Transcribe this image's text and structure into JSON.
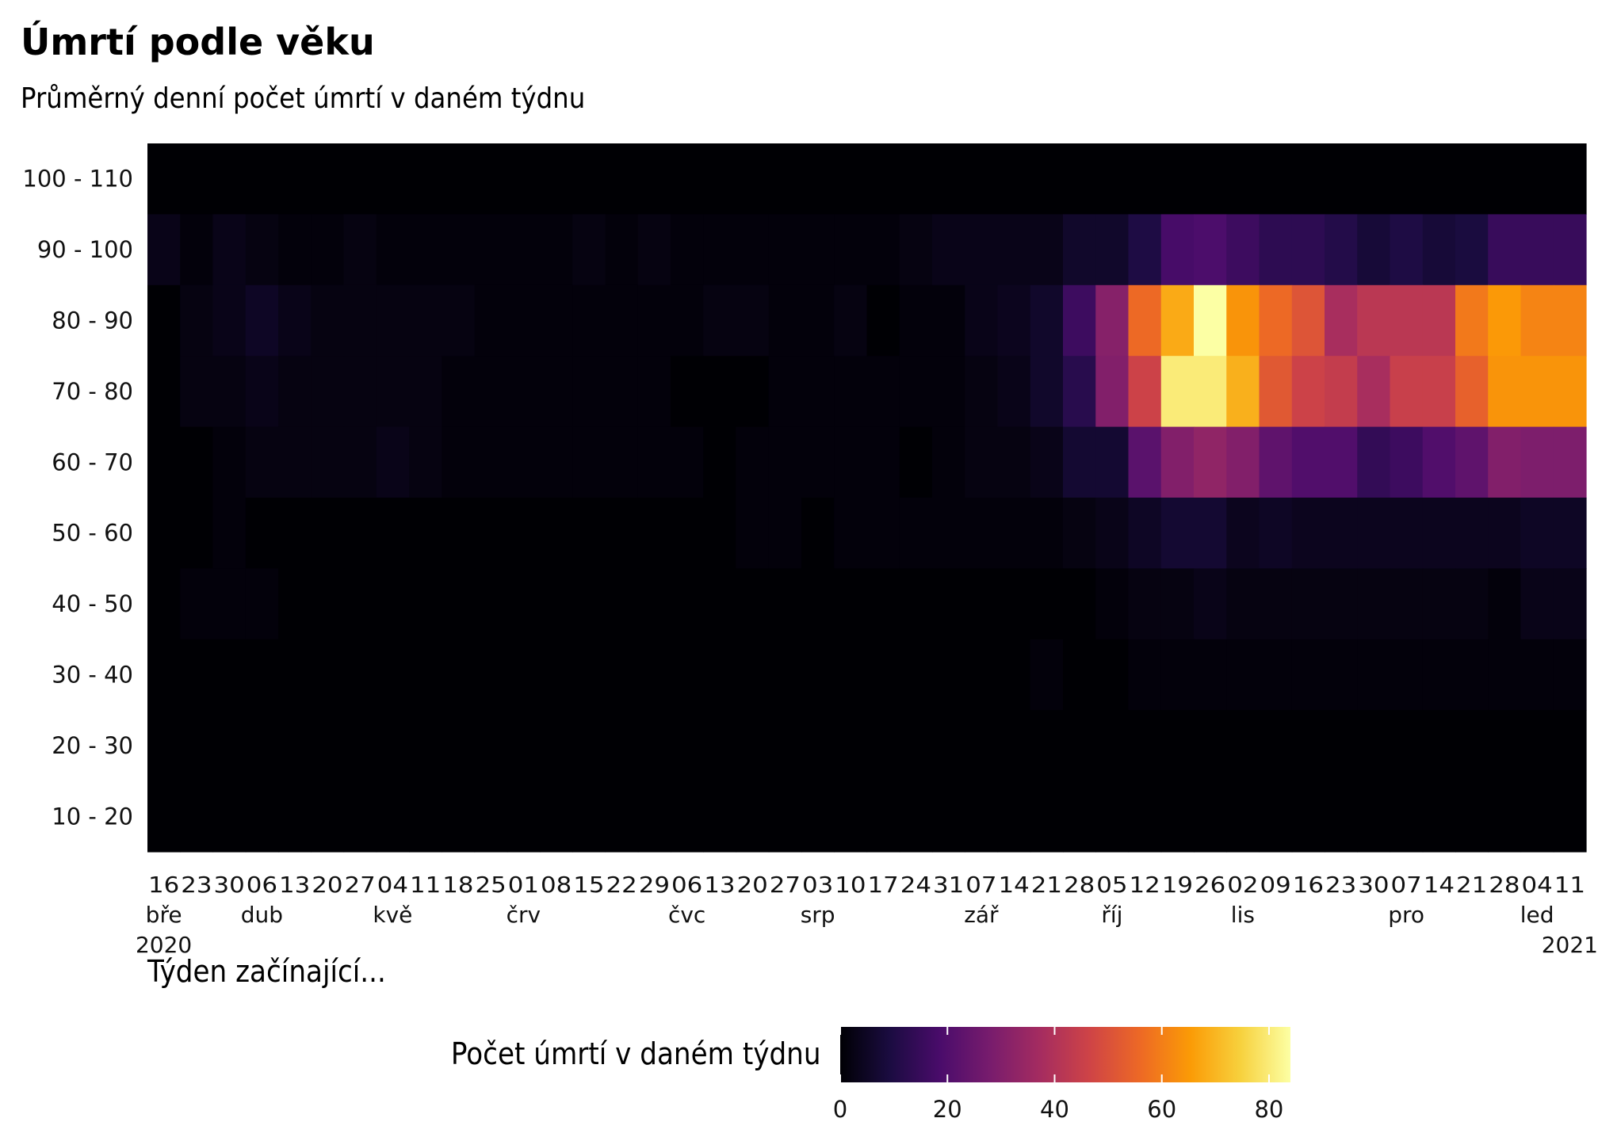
{
  "chart_data": {
    "type": "heatmap",
    "title": "Úmrtí podle věku",
    "subtitle": "Průměrný denní počet úmrtí v daném týdnu",
    "xlabel": "Týden začínající...",
    "ylabel": "",
    "legend_title": "Počet úmrtí v daném týdnu",
    "legend_ticks": [
      "0",
      "20",
      "40",
      "60",
      "80"
    ],
    "legend_range": [
      0,
      84
    ],
    "colorscale": "inferno",
    "colorstops": [
      "#000004",
      "#1b0c41",
      "#4a0c6b",
      "#781c6d",
      "#a52c60",
      "#cf4446",
      "#ed6925",
      "#fb9b06",
      "#f7d13d",
      "#fcffa4"
    ],
    "y_categories": [
      "100 - 110",
      "90 - 100",
      "80 - 90",
      "70 - 80",
      "60 - 70",
      "50 - 60",
      "40 - 50",
      "30 - 40",
      "20 - 30",
      "10 - 20"
    ],
    "x_ticks": [
      {
        "day": "16",
        "month": "bře",
        "year": "2020"
      },
      {
        "day": "23",
        "month": "",
        "year": ""
      },
      {
        "day": "30",
        "month": "",
        "year": ""
      },
      {
        "day": "06",
        "month": "dub",
        "year": ""
      },
      {
        "day": "13",
        "month": "",
        "year": ""
      },
      {
        "day": "20",
        "month": "",
        "year": ""
      },
      {
        "day": "27",
        "month": "",
        "year": ""
      },
      {
        "day": "04",
        "month": "kvě",
        "year": ""
      },
      {
        "day": "11",
        "month": "",
        "year": ""
      },
      {
        "day": "18",
        "month": "",
        "year": ""
      },
      {
        "day": "25",
        "month": "",
        "year": ""
      },
      {
        "day": "01",
        "month": "črv",
        "year": ""
      },
      {
        "day": "08",
        "month": "",
        "year": ""
      },
      {
        "day": "15",
        "month": "",
        "year": ""
      },
      {
        "day": "22",
        "month": "",
        "year": ""
      },
      {
        "day": "29",
        "month": "",
        "year": ""
      },
      {
        "day": "06",
        "month": "čvc",
        "year": ""
      },
      {
        "day": "13",
        "month": "",
        "year": ""
      },
      {
        "day": "20",
        "month": "",
        "year": ""
      },
      {
        "day": "27",
        "month": "",
        "year": ""
      },
      {
        "day": "03",
        "month": "srp",
        "year": ""
      },
      {
        "day": "10",
        "month": "",
        "year": ""
      },
      {
        "day": "17",
        "month": "",
        "year": ""
      },
      {
        "day": "24",
        "month": "",
        "year": ""
      },
      {
        "day": "31",
        "month": "",
        "year": ""
      },
      {
        "day": "07",
        "month": "zář",
        "year": ""
      },
      {
        "day": "14",
        "month": "",
        "year": ""
      },
      {
        "day": "21",
        "month": "",
        "year": ""
      },
      {
        "day": "28",
        "month": "",
        "year": ""
      },
      {
        "day": "05",
        "month": "říj",
        "year": ""
      },
      {
        "day": "12",
        "month": "",
        "year": ""
      },
      {
        "day": "19",
        "month": "",
        "year": ""
      },
      {
        "day": "26",
        "month": "",
        "year": ""
      },
      {
        "day": "02",
        "month": "lis",
        "year": ""
      },
      {
        "day": "09",
        "month": "",
        "year": ""
      },
      {
        "day": "16",
        "month": "",
        "year": ""
      },
      {
        "day": "23",
        "month": "",
        "year": ""
      },
      {
        "day": "30",
        "month": "",
        "year": ""
      },
      {
        "day": "07",
        "month": "pro",
        "year": ""
      },
      {
        "day": "14",
        "month": "",
        "year": ""
      },
      {
        "day": "21",
        "month": "",
        "year": ""
      },
      {
        "day": "28",
        "month": "",
        "year": ""
      },
      {
        "day": "04",
        "month": "led",
        "year": ""
      },
      {
        "day": "11",
        "month": "",
        "year": "2021"
      }
    ],
    "values": [
      [
        0,
        0,
        0,
        0,
        0,
        0,
        0,
        0,
        0,
        0,
        0,
        0,
        0,
        0,
        0,
        0,
        0,
        0,
        0,
        0,
        0,
        0,
        0,
        0,
        0,
        0,
        0,
        0,
        0,
        0,
        0,
        0,
        0,
        0,
        0,
        0,
        0,
        0,
        0,
        0,
        0,
        0,
        0,
        0
      ],
      [
        3,
        1,
        3,
        2,
        1,
        1,
        2,
        1,
        1,
        1,
        1,
        1,
        1,
        2,
        1,
        2,
        1,
        1,
        1,
        1,
        1,
        1,
        1,
        2,
        3,
        3,
        3,
        3,
        6,
        6,
        10,
        18,
        19,
        16,
        13,
        13,
        11,
        8,
        10,
        8,
        9,
        15,
        15,
        15
      ],
      [
        0,
        2,
        3,
        5,
        3,
        2,
        2,
        2,
        2,
        2,
        1,
        1,
        1,
        1,
        1,
        1,
        1,
        2,
        2,
        1,
        1,
        2,
        0,
        1,
        1,
        3,
        4,
        6,
        16,
        31,
        56,
        68,
        84,
        64,
        56,
        51,
        38,
        42,
        42,
        42,
        59,
        65,
        61,
        61
      ],
      [
        0,
        2,
        2,
        3,
        2,
        2,
        2,
        2,
        2,
        1,
        1,
        1,
        1,
        1,
        1,
        1,
        0,
        0,
        0,
        1,
        1,
        1,
        1,
        1,
        1,
        2,
        3,
        6,
        12,
        30,
        46,
        80,
        80,
        69,
        52,
        46,
        44,
        38,
        45,
        45,
        54,
        64,
        64,
        64
      ],
      [
        0,
        0,
        1,
        2,
        2,
        2,
        2,
        3,
        2,
        1,
        1,
        1,
        1,
        1,
        1,
        1,
        1,
        0,
        1,
        1,
        1,
        1,
        1,
        0,
        1,
        2,
        2,
        3,
        7,
        7,
        22,
        30,
        33,
        30,
        23,
        20,
        20,
        14,
        16,
        20,
        23,
        30,
        29,
        29
      ],
      [
        0,
        0,
        1,
        0,
        0,
        0,
        0,
        0,
        0,
        0,
        0,
        0,
        0,
        0,
        0,
        0,
        0,
        0,
        1,
        1,
        0,
        1,
        1,
        1,
        1,
        1,
        1,
        1,
        2,
        3,
        5,
        7,
        7,
        4,
        5,
        4,
        4,
        4,
        4,
        4,
        4,
        4,
        5,
        5
      ],
      [
        0,
        1,
        1,
        1,
        0,
        0,
        0,
        0,
        0,
        0,
        0,
        0,
        0,
        0,
        0,
        0,
        0,
        0,
        0,
        0,
        0,
        0,
        0,
        0,
        0,
        0,
        0,
        0,
        0,
        1,
        2,
        2,
        3,
        2,
        2,
        2,
        2,
        2,
        2,
        2,
        2,
        1,
        3,
        3
      ],
      [
        0,
        0,
        0,
        0,
        0,
        0,
        0,
        0,
        0,
        0,
        0,
        0,
        0,
        0,
        0,
        0,
        0,
        0,
        0,
        0,
        0,
        0,
        0,
        0,
        0,
        0,
        0,
        1,
        0,
        0,
        1,
        1,
        1,
        1,
        1,
        1,
        1,
        1,
        1,
        1,
        1,
        1,
        1,
        1
      ],
      [
        0,
        0,
        0,
        0,
        0,
        0,
        0,
        0,
        0,
        0,
        0,
        0,
        0,
        0,
        0,
        0,
        0,
        0,
        0,
        0,
        0,
        0,
        0,
        0,
        0,
        0,
        0,
        0,
        0,
        0,
        0,
        0,
        0,
        0,
        0,
        0,
        0,
        0,
        0,
        0,
        0,
        0,
        0,
        0
      ],
      [
        0,
        0,
        0,
        0,
        0,
        0,
        0,
        0,
        0,
        0,
        0,
        0,
        0,
        0,
        0,
        0,
        0,
        0,
        0,
        0,
        0,
        0,
        0,
        0,
        0,
        0,
        0,
        0,
        0,
        0,
        0,
        0,
        0,
        0,
        0,
        0,
        0,
        0,
        0,
        0,
        0,
        0,
        0,
        0
      ]
    ]
  }
}
